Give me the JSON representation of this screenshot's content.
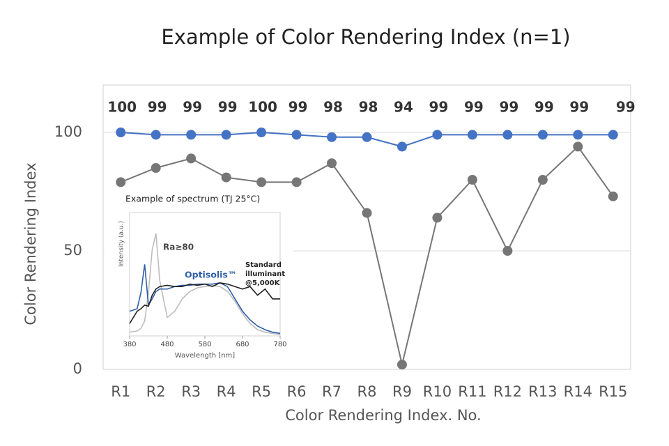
{
  "chart_data": [
    {
      "type": "line",
      "title": "Example of Color Rendering Index (n=1)",
      "x_label": "Color Rendering Index. No.",
      "y_label": "Color Rendering Index",
      "categories": [
        "R1",
        "R2",
        "R3",
        "R4",
        "R5",
        "R6",
        "R7",
        "R8",
        "R9",
        "R10",
        "R11",
        "R12",
        "R13",
        "R14",
        "R15"
      ],
      "series": [
        {
          "color": "#4472c4",
          "values": [
            100,
            99,
            99,
            99,
            100,
            99,
            98,
            98,
            94,
            99,
            99,
            99,
            99,
            99,
            99
          ]
        },
        {
          "color": "#767676",
          "values": [
            79,
            85,
            89,
            81,
            79,
            79,
            87,
            66,
            2,
            64,
            80,
            50,
            80,
            94,
            73
          ]
        }
      ],
      "ylim": [
        0,
        120
      ],
      "yticks": [
        0,
        50,
        100
      ],
      "grid": true
    },
    {
      "type": "line",
      "title": "Example of spectrum (TJ 25°C)",
      "x_label": "Wavelength [nm]",
      "y_label": "Intensity (a.u.)",
      "x": [
        380,
        400,
        410,
        420,
        430,
        440,
        450,
        460,
        480,
        500,
        520,
        540,
        560,
        580,
        600,
        620,
        640,
        660,
        680,
        700,
        720,
        740,
        760,
        780
      ],
      "series": [
        {
          "name": "Ra≥80",
          "color": "#bdbdbd",
          "values": [
            0.03,
            0.04,
            0.06,
            0.12,
            0.35,
            0.7,
            0.83,
            0.45,
            0.15,
            0.2,
            0.3,
            0.36,
            0.39,
            0.4,
            0.41,
            0.4,
            0.36,
            0.28,
            0.18,
            0.1,
            0.05,
            0.03,
            0.02,
            0.01
          ]
        },
        {
          "name": "Optisolis™",
          "color": "#2f5ea8",
          "values": [
            0.2,
            0.22,
            0.35,
            0.58,
            0.25,
            0.3,
            0.36,
            0.38,
            0.38,
            0.4,
            0.41,
            0.41,
            0.42,
            0.42,
            0.42,
            0.43,
            0.4,
            0.3,
            0.2,
            0.13,
            0.08,
            0.05,
            0.03,
            0.02
          ]
        },
        {
          "name": "Standard illuminant @5,000K",
          "color": "#222222",
          "values": [
            0.1,
            0.2,
            0.22,
            0.25,
            0.24,
            0.33,
            0.38,
            0.4,
            0.41,
            0.4,
            0.4,
            0.42,
            0.41,
            0.42,
            0.4,
            0.43,
            0.42,
            0.4,
            0.38,
            0.4,
            0.33,
            0.38,
            0.3,
            0.3
          ]
        }
      ],
      "xlim": [
        380,
        780
      ],
      "xticks": [
        380,
        480,
        580,
        680,
        780
      ],
      "ylim": [
        0,
        1
      ]
    }
  ]
}
